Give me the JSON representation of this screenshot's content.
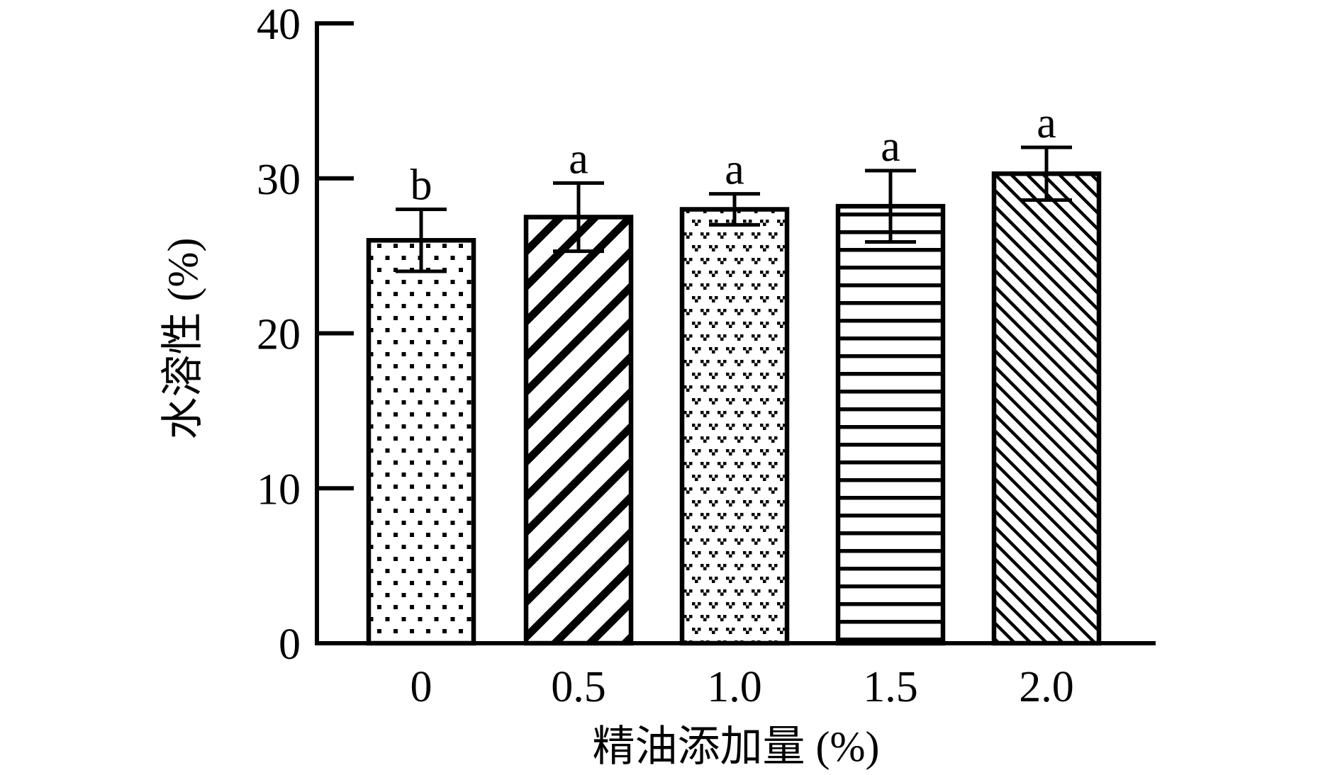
{
  "figure": {
    "background": "#ffffff",
    "ink": "#000000"
  },
  "chart_data": {
    "type": "bar",
    "title": "",
    "xlabel": "精油添加量 (%)",
    "ylabel": "水溶性 (%)",
    "categories": [
      "0",
      "0.5",
      "1.0",
      "1.5",
      "2.0"
    ],
    "values": [
      26.0,
      27.5,
      28.0,
      28.2,
      30.3
    ],
    "errors": [
      2.0,
      2.2,
      1.0,
      2.3,
      1.7
    ],
    "sig_letters": [
      "b",
      "a",
      "a",
      "a",
      "a"
    ],
    "hatches": [
      "dots",
      "thick-diagonal-slash",
      "v-checker",
      "horizontal-lines",
      "thin-diagonal-backslash"
    ],
    "bar_fill": "#ffffff",
    "bar_edge": "#000000",
    "ylim": [
      0,
      40
    ],
    "yticks": [
      0,
      10,
      20,
      30,
      40
    ],
    "grid": false,
    "legend_position": "none"
  }
}
